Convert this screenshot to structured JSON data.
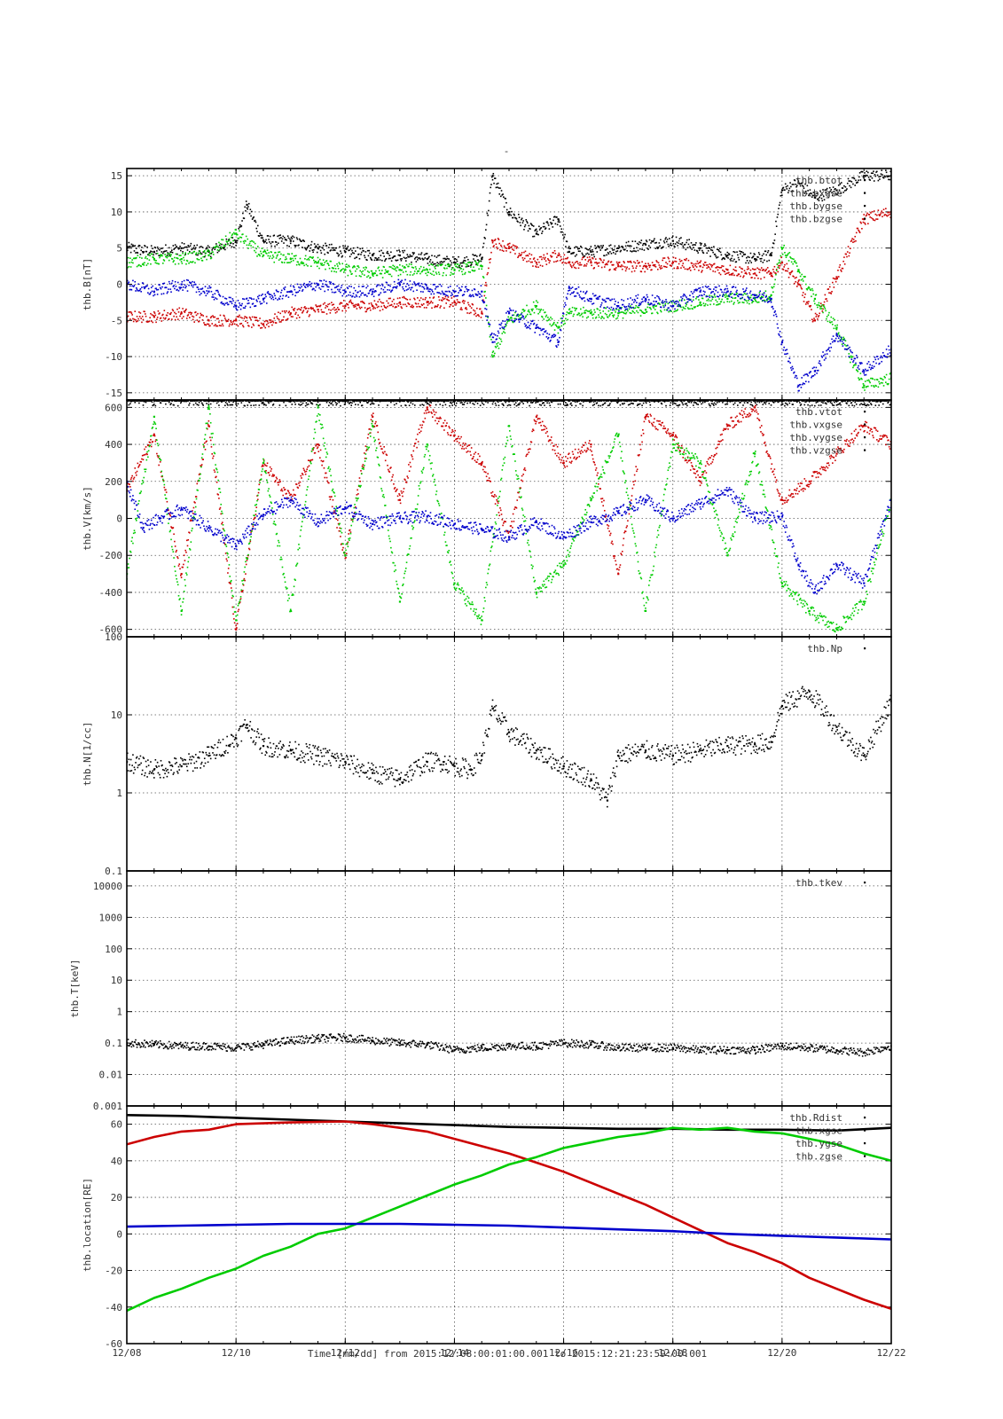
{
  "page": {
    "top_marker": "-"
  },
  "x_axis": {
    "tick_labels": [
      "12/08",
      "12/10",
      "12/12",
      "12/14",
      "12/16",
      "12/18",
      "12/20",
      "12/22"
    ],
    "tick_days": [
      0,
      2,
      4,
      6,
      8,
      10,
      12,
      14
    ],
    "range_days": [
      0,
      14
    ],
    "title": "Time [mm/dd]  from 2015:12:08:00:01:00.001  to  2015:12:21:23:59:00.001"
  },
  "colors": {
    "black": "#000000",
    "red": "#cc0000",
    "green": "#00cc00",
    "blue": "#0000cc"
  },
  "chart_data": [
    {
      "type": "scatter",
      "id": "B",
      "ylabel": "thb.B[nT]",
      "ylim": [
        -16,
        16
      ],
      "scale": "linear",
      "yticks": [
        15,
        10,
        5,
        0,
        -5,
        -10,
        -15
      ],
      "ytick_labels": [
        "15",
        "10",
        "5",
        "0",
        "-5",
        "-10",
        "-15"
      ],
      "grid": true,
      "legend": "top-right",
      "legend_entries": [
        "thb.btot",
        "thb.bxgse",
        "thb.bygse",
        "thb.bzgse"
      ],
      "series": [
        {
          "name": "thb.btot",
          "color": "black",
          "x": [
            0,
            0.5,
            1,
            1.5,
            2,
            2.2,
            2.5,
            3,
            3.5,
            4,
            4.5,
            5,
            5.5,
            6,
            6.5,
            6.7,
            7,
            7.5,
            7.9,
            8.1,
            8.5,
            9,
            9.5,
            10,
            10.5,
            11,
            11.5,
            11.8,
            12,
            12.3,
            12.6,
            13,
            13.5,
            14
          ],
          "y": [
            5,
            4.5,
            5,
            4.5,
            6,
            11,
            6,
            6,
            5,
            4.5,
            4,
            4,
            3.5,
            3,
            3.5,
            15,
            10,
            7,
            9,
            4.5,
            4.5,
            5,
            5.5,
            6,
            5,
            4,
            3.5,
            4,
            13,
            14,
            12,
            13,
            15,
            15
          ]
        },
        {
          "name": "thb.bxgse",
          "color": "red",
          "x": [
            0,
            0.5,
            1,
            1.5,
            2,
            2.5,
            3,
            3.5,
            4,
            4.5,
            5,
            5.5,
            6,
            6.5,
            6.7,
            7,
            7.5,
            7.9,
            8.1,
            8.5,
            9,
            9.5,
            10,
            10.5,
            11,
            11.5,
            11.8,
            12,
            12.3,
            12.6,
            13,
            13.5,
            14
          ],
          "y": [
            -4.5,
            -4.5,
            -4,
            -5,
            -5,
            -5.5,
            -4,
            -3.5,
            -3,
            -3,
            -2.5,
            -2.5,
            -2.5,
            -4,
            6,
            5,
            3,
            4,
            3,
            3,
            2.5,
            2.5,
            3,
            2.5,
            2,
            1.5,
            1.5,
            3,
            0,
            -5,
            1,
            9,
            10
          ]
        },
        {
          "name": "thb.bygse",
          "color": "green",
          "x": [
            0,
            0.5,
            1,
            1.5,
            2,
            2.5,
            3,
            3.5,
            4,
            4.5,
            5,
            5.5,
            6,
            6.5,
            6.7,
            7,
            7.5,
            7.9,
            8.1,
            8.5,
            9,
            9.5,
            10,
            10.5,
            11,
            11.5,
            11.8,
            12,
            12.3,
            12.6,
            13,
            13.5,
            14
          ],
          "y": [
            3,
            3.5,
            3.5,
            4,
            7,
            4,
            3.5,
            3,
            2,
            1.5,
            2,
            2,
            2,
            2.5,
            -10,
            -5,
            -3,
            -6,
            -4,
            -4,
            -4,
            -3.5,
            -3,
            -2.5,
            -2,
            -2,
            -1.5,
            5,
            2,
            -2,
            -6,
            -14,
            -13
          ]
        },
        {
          "name": "thb.bzgse",
          "color": "blue",
          "x": [
            0,
            0.5,
            1,
            1.5,
            2,
            2.5,
            3,
            3.5,
            4,
            4.5,
            5,
            5.5,
            6,
            6.5,
            6.7,
            7,
            7.5,
            7.9,
            8.1,
            8.5,
            9,
            9.5,
            10,
            10.5,
            11,
            11.5,
            11.8,
            12,
            12.3,
            12.6,
            13,
            13.5,
            14
          ],
          "y": [
            0,
            -1,
            0,
            -1,
            -3,
            -2,
            -1,
            0,
            -1,
            -1,
            0,
            -0.5,
            -1,
            -1,
            -8,
            -4,
            -6,
            -8,
            -0.5,
            -2,
            -3,
            -2,
            -3,
            -1,
            -1,
            -1.5,
            -2,
            -8,
            -14,
            -12,
            -7,
            -12,
            -9
          ]
        }
      ]
    },
    {
      "type": "scatter",
      "id": "V",
      "ylabel": "thb.V[km/s]",
      "ylim": [
        -640,
        640
      ],
      "scale": "linear",
      "yticks": [
        600,
        400,
        200,
        0,
        -200,
        -400,
        -600
      ],
      "ytick_labels": [
        "600",
        "400",
        "200",
        "0",
        "-200",
        "-400",
        "-600"
      ],
      "grid": true,
      "legend": "top-right",
      "legend_entries": [
        "thb.vtot",
        "thb.vxgse",
        "thb.vygse",
        "thb.vzgse"
      ],
      "series": [
        {
          "name": "thb.vtot",
          "color": "black",
          "x": [
            0,
            1,
            2,
            3,
            4,
            5,
            6,
            7,
            8,
            9,
            10,
            11,
            12,
            13,
            14
          ],
          "y": [
            640,
            640,
            640,
            640,
            640,
            640,
            640,
            640,
            640,
            640,
            640,
            640,
            640,
            640,
            640
          ]
        },
        {
          "name": "thb.vxgse",
          "color": "red",
          "x": [
            0,
            0.5,
            1,
            1.5,
            2,
            2.5,
            3,
            3.5,
            4,
            4.5,
            5,
            5.5,
            6,
            6.5,
            7,
            7.5,
            8,
            8.5,
            9,
            9.5,
            10,
            10.5,
            11,
            11.5,
            12,
            12.5,
            13,
            13.5,
            14
          ],
          "y": [
            150,
            450,
            -300,
            500,
            -600,
            300,
            100,
            400,
            -200,
            550,
            100,
            600,
            450,
            300,
            -100,
            550,
            300,
            400,
            -300,
            550,
            450,
            200,
            500,
            600,
            100,
            200,
            350,
            500,
            400
          ]
        },
        {
          "name": "thb.vygse",
          "color": "green",
          "x": [
            0,
            0.5,
            1,
            1.5,
            2,
            2.5,
            3,
            3.5,
            4,
            4.5,
            5,
            5.5,
            6,
            6.5,
            7,
            7.5,
            8,
            8.5,
            9,
            9.5,
            10,
            10.5,
            11,
            11.5,
            12,
            12.5,
            13,
            13.5,
            14
          ],
          "y": [
            -300,
            550,
            -500,
            600,
            -550,
            300,
            -500,
            600,
            -200,
            500,
            -450,
            400,
            -350,
            -550,
            500,
            -400,
            -250,
            100,
            450,
            -500,
            400,
            300,
            -200,
            350,
            -350,
            -500,
            -600,
            -450,
            100
          ]
        },
        {
          "name": "thb.vzgse",
          "color": "blue",
          "x": [
            0,
            0.3,
            0.6,
            1,
            1.5,
            2,
            2.5,
            3,
            3.5,
            4,
            4.5,
            5,
            5.5,
            6,
            6.5,
            7,
            7.5,
            8,
            8.5,
            9,
            9.5,
            10,
            10.5,
            11,
            11.5,
            12,
            12.3,
            12.6,
            13,
            13.5,
            14
          ],
          "y": [
            200,
            -50,
            0,
            50,
            -50,
            -150,
            20,
            100,
            -20,
            60,
            -30,
            0,
            10,
            -30,
            -60,
            -100,
            -20,
            -100,
            -20,
            30,
            100,
            0,
            80,
            150,
            0,
            10,
            -250,
            -400,
            -250,
            -350,
            100
          ]
        }
      ]
    },
    {
      "type": "scatter",
      "id": "N",
      "ylabel": "thb.N[1/cc]",
      "ylim": [
        0.1,
        100
      ],
      "scale": "log",
      "yticks": [
        100,
        10,
        1,
        0.1
      ],
      "ytick_labels": [
        "100",
        "10",
        "1",
        "0.1"
      ],
      "grid": true,
      "legend": "top-right",
      "legend_entries": [
        "thb.Np"
      ],
      "series": [
        {
          "name": "thb.Np",
          "color": "black",
          "x": [
            0,
            0.5,
            1,
            1.5,
            2,
            2.2,
            2.5,
            3,
            3.5,
            4,
            4.5,
            5,
            5.5,
            5.8,
            6,
            6.3,
            6.5,
            6.7,
            7,
            7.5,
            8,
            8.5,
            8.8,
            9,
            9.5,
            10,
            10.5,
            11,
            11.5,
            11.8,
            12,
            12.5,
            13,
            13.5,
            14
          ],
          "y": [
            2.5,
            2,
            2.2,
            3,
            5,
            7.5,
            4,
            3.5,
            3,
            2.5,
            1.8,
            1.5,
            2.5,
            2.5,
            2.2,
            2,
            3,
            12,
            6,
            3.5,
            2.2,
            1.5,
            0.8,
            3,
            3.5,
            3,
            3.5,
            4,
            4.2,
            4.5,
            13,
            20,
            7,
            3,
            15
          ]
        }
      ]
    },
    {
      "type": "scatter",
      "id": "T",
      "ylabel": "thb.T[keV]",
      "ylim": [
        0.001,
        30000
      ],
      "scale": "log",
      "yticks": [
        10000,
        1000,
        100,
        10,
        1,
        0.1,
        0.01,
        0.001
      ],
      "ytick_labels": [
        "10000",
        "1000",
        "100",
        "10",
        "1",
        "0.1",
        "0.01",
        "0.001"
      ],
      "grid": true,
      "legend": "top-right",
      "legend_entries": [
        "thb.tkev"
      ],
      "series": [
        {
          "name": "thb.tkev",
          "color": "black",
          "x": [
            0,
            0.5,
            1,
            1.5,
            2,
            2.5,
            3,
            3.5,
            4,
            4.5,
            5,
            5.5,
            6,
            6.5,
            7,
            7.5,
            8,
            8.5,
            9,
            9.5,
            10,
            10.5,
            11,
            11.5,
            12,
            12.5,
            13,
            13.5,
            14
          ],
          "y": [
            0.1,
            0.09,
            0.08,
            0.08,
            0.07,
            0.09,
            0.12,
            0.14,
            0.15,
            0.12,
            0.1,
            0.09,
            0.06,
            0.07,
            0.08,
            0.08,
            0.1,
            0.09,
            0.07,
            0.07,
            0.07,
            0.06,
            0.06,
            0.06,
            0.08,
            0.07,
            0.06,
            0.05,
            0.08
          ]
        }
      ]
    },
    {
      "type": "line",
      "id": "location",
      "ylabel": "thb.location[RE]",
      "ylim": [
        -60,
        70
      ],
      "scale": "linear",
      "yticks": [
        60,
        40,
        20,
        0,
        -20,
        -40,
        -60
      ],
      "ytick_labels": [
        "60",
        "40",
        "20",
        "0",
        "-20",
        "-40",
        "-60"
      ],
      "grid": true,
      "legend": "top-right",
      "legend_entries": [
        "thb.Rdist",
        "thb.xgse",
        "thb.ygse",
        "thb.zgse"
      ],
      "series": [
        {
          "name": "thb.Rdist",
          "color": "black",
          "x": [
            0,
            1,
            2,
            3,
            4,
            5,
            6,
            7,
            8,
            9,
            10,
            11,
            12,
            13,
            14
          ],
          "y": [
            65,
            64.5,
            63.5,
            62.5,
            61.5,
            60.5,
            59.5,
            58.5,
            58,
            57.5,
            57.5,
            57,
            57,
            56.5,
            58
          ]
        },
        {
          "name": "thb.xgse",
          "color": "red",
          "x": [
            0,
            0.5,
            1,
            1.5,
            2,
            3,
            4,
            4.5,
            5,
            5.5,
            6,
            6.5,
            7,
            7.5,
            8,
            8.5,
            9,
            9.5,
            10,
            10.5,
            11,
            11.5,
            12,
            12.5,
            13,
            13.5,
            14
          ],
          "y": [
            49,
            53,
            56,
            57,
            60,
            61,
            61.5,
            60,
            58,
            56,
            52,
            48,
            44,
            39,
            34,
            28,
            22,
            16,
            9,
            2,
            -5,
            -10,
            -16,
            -24,
            -30,
            -36,
            -41
          ]
        },
        {
          "name": "thb.ygse",
          "color": "green",
          "x": [
            0,
            0.5,
            1,
            1.5,
            2,
            2.5,
            3,
            3.5,
            4,
            4.5,
            5,
            5.5,
            6,
            6.5,
            7,
            7.5,
            8,
            8.5,
            9,
            9.5,
            10,
            10.5,
            11,
            11.5,
            12,
            12.5,
            13,
            13.5,
            14
          ],
          "y": [
            -42,
            -35,
            -30,
            -24,
            -19,
            -12,
            -7,
            0,
            3,
            9,
            15,
            21,
            27,
            32,
            38,
            42,
            47,
            50,
            53,
            55,
            58,
            57,
            58,
            56,
            55,
            52,
            49,
            44,
            40
          ]
        },
        {
          "name": "thb.zgse",
          "color": "blue",
          "x": [
            0,
            1,
            2,
            3,
            4,
            5,
            6,
            7,
            8,
            9,
            10,
            11,
            12,
            13,
            14
          ],
          "y": [
            4,
            4.5,
            5,
            5.5,
            5.5,
            5.5,
            5,
            4.5,
            3.5,
            2.5,
            1.5,
            0,
            -1,
            -2,
            -3
          ]
        }
      ]
    }
  ]
}
